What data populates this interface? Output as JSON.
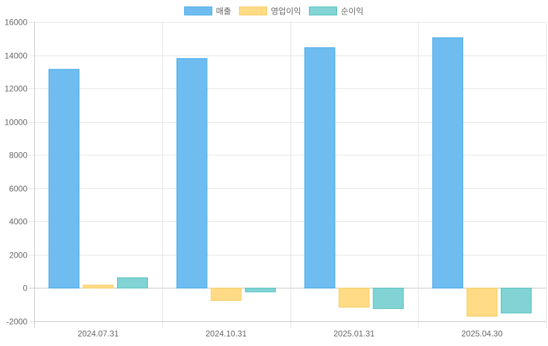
{
  "chart_data": {
    "type": "bar",
    "title": "",
    "xlabel": "",
    "ylabel": "",
    "categories": [
      "2024.07.31",
      "2024.10.31",
      "2025.01.31",
      "2025.04.30"
    ],
    "series": [
      {
        "name": "매출",
        "values": [
          13150,
          13800,
          14450,
          15050
        ],
        "fill": "#6fbdf0",
        "stroke": "#43a6e6"
      },
      {
        "name": "영업이익",
        "values": [
          180,
          -750,
          -1150,
          -1700
        ],
        "fill": "#ffdb86",
        "stroke": "#f7cc62"
      },
      {
        "name": "순이익",
        "values": [
          620,
          -230,
          -1230,
          -1500
        ],
        "fill": "#82d3d3",
        "stroke": "#4fbfbf"
      }
    ],
    "ylim": [
      -2000,
      16000
    ],
    "yticks": [
      -2000,
      0,
      2000,
      4000,
      6000,
      8000,
      10000,
      12000,
      14000,
      16000
    ],
    "grid": true,
    "legend_position": "top-center"
  }
}
